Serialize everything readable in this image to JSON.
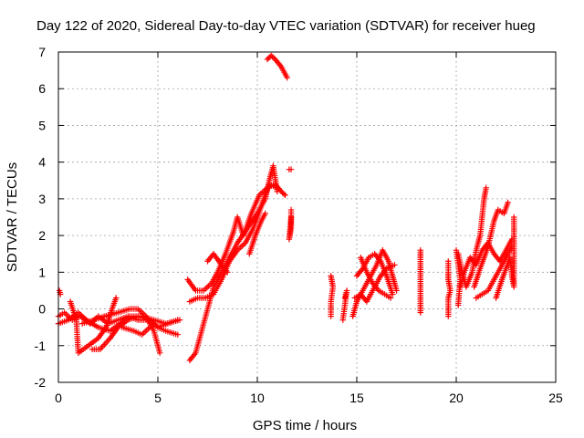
{
  "chart_data": {
    "type": "scatter",
    "title": "Day 122 of 2020, Sidereal Day-to-day VTEC variation (SDTVAR) for receiver hueg",
    "xlabel": "GPS time / hours",
    "ylabel": "SDTVAR / TECUs",
    "xlim": [
      0,
      25
    ],
    "ylim": [
      -2,
      7
    ],
    "xticks": [
      "0",
      "5",
      "10",
      "15",
      "20",
      "25"
    ],
    "yticks": [
      "-2",
      "-1",
      "0",
      "1",
      "2",
      "3",
      "4",
      "5",
      "6",
      "7"
    ],
    "grid": true,
    "marker": "+",
    "color": "#ff0000",
    "series": [
      {
        "name": "SDTVAR",
        "segments": [
          [
            [
              0,
              -0.2
            ],
            [
              0.3,
              -0.1
            ],
            [
              0.7,
              -0.3
            ],
            [
              1.1,
              -0.2
            ],
            [
              1.6,
              -0.4
            ],
            [
              2.0,
              -0.2
            ],
            [
              2.5,
              -0.4
            ],
            [
              3.0,
              -0.3
            ],
            [
              3.5,
              -0.2
            ],
            [
              4.0,
              -0.3
            ],
            [
              4.5,
              -0.3
            ],
            [
              5.0,
              -0.5
            ],
            [
              5.5,
              -0.4
            ],
            [
              6.0,
              -0.3
            ]
          ],
          [
            [
              0,
              -0.4
            ],
            [
              0.5,
              -0.3
            ],
            [
              1.0,
              -0.1
            ],
            [
              1.4,
              -0.3
            ],
            [
              2.0,
              -0.5
            ],
            [
              2.6,
              -0.6
            ],
            [
              3.1,
              -0.4
            ],
            [
              3.6,
              -0.2
            ],
            [
              4.2,
              -0.2
            ],
            [
              4.8,
              -0.3
            ],
            [
              5.4,
              -0.4
            ],
            [
              6.1,
              -0.3
            ]
          ],
          [
            [
              0.6,
              0.2
            ],
            [
              0.9,
              -0.3
            ],
            [
              1.0,
              -1.2
            ],
            [
              1.5,
              -1.0
            ],
            [
              2.0,
              -0.8
            ],
            [
              2.4,
              -0.5
            ],
            [
              2.7,
              0.0
            ],
            [
              2.9,
              0.3
            ]
          ],
          [
            [
              1.7,
              -1.1
            ],
            [
              2.1,
              -1.1
            ],
            [
              2.6,
              -0.8
            ],
            [
              3.0,
              -0.5
            ],
            [
              3.5,
              -0.3
            ],
            [
              4.0,
              -0.2
            ],
            [
              4.6,
              -0.3
            ],
            [
              5.0,
              -0.5
            ],
            [
              5.4,
              -0.6
            ],
            [
              6.0,
              -0.7
            ]
          ],
          [
            [
              1.2,
              -0.4
            ],
            [
              1.8,
              -0.3
            ],
            [
              2.3,
              -0.2
            ],
            [
              3.0,
              -0.1
            ],
            [
              3.6,
              0.0
            ],
            [
              4.0,
              0.0
            ],
            [
              4.4,
              -0.2
            ],
            [
              4.8,
              -0.6
            ],
            [
              5.1,
              -1.2
            ]
          ],
          [
            [
              3.2,
              -0.5
            ],
            [
              3.8,
              -0.6
            ],
            [
              4.2,
              -0.7
            ],
            [
              4.6,
              -0.5
            ]
          ],
          [
            [
              0.05,
              0.5
            ],
            [
              0.1,
              0.4
            ]
          ],
          [
            [
              6.6,
              -1.4
            ],
            [
              6.9,
              -1.2
            ],
            [
              7.2,
              -0.6
            ],
            [
              7.5,
              0.0
            ],
            [
              7.8,
              0.6
            ],
            [
              8.2,
              1.0
            ],
            [
              8.6,
              1.4
            ],
            [
              9.0,
              1.8
            ],
            [
              9.5,
              2.2
            ],
            [
              10.0,
              2.6
            ],
            [
              10.4,
              3.0
            ],
            [
              10.6,
              3.5
            ],
            [
              10.8,
              3.9
            ],
            [
              11.0,
              3.2
            ]
          ],
          [
            [
              6.5,
              0.8
            ],
            [
              6.9,
              0.5
            ],
            [
              7.3,
              0.5
            ],
            [
              7.7,
              0.7
            ],
            [
              8.0,
              1.0
            ],
            [
              8.4,
              1.5
            ],
            [
              8.8,
              2.1
            ],
            [
              9.0,
              2.5
            ],
            [
              9.3,
              2.0
            ],
            [
              9.7,
              2.6
            ],
            [
              10.1,
              3.1
            ],
            [
              10.5,
              3.3
            ],
            [
              10.9,
              3.4
            ],
            [
              11.2,
              3.2
            ],
            [
              11.4,
              3.1
            ]
          ],
          [
            [
              6.6,
              0.2
            ],
            [
              7.0,
              0.3
            ],
            [
              7.4,
              0.3
            ],
            [
              7.8,
              0.4
            ],
            [
              8.2,
              0.8
            ],
            [
              8.6,
              1.3
            ],
            [
              9.0,
              1.6
            ],
            [
              9.4,
              1.8
            ],
            [
              9.8,
              2.2
            ],
            [
              10.2,
              2.8
            ],
            [
              10.6,
              3.4
            ],
            [
              11.0,
              3.3
            ]
          ],
          [
            [
              7.5,
              1.3
            ],
            [
              7.8,
              1.5
            ],
            [
              8.2,
              1.2
            ],
            [
              8.5,
              1.0
            ]
          ],
          [
            [
              9.6,
              1.5
            ],
            [
              9.9,
              2.0
            ],
            [
              10.2,
              2.4
            ],
            [
              10.4,
              2.6
            ]
          ],
          [
            [
              10.5,
              6.8
            ],
            [
              10.7,
              6.9
            ],
            [
              10.9,
              6.8
            ],
            [
              11.2,
              6.6
            ],
            [
              11.5,
              6.3
            ]
          ],
          [
            [
              11.6,
              3.8
            ],
            [
              11.7,
              3.8
            ]
          ],
          [
            [
              11.7,
              2.7
            ],
            [
              11.7,
              2.2
            ],
            [
              11.6,
              1.9
            ],
            [
              11.7,
              2.5
            ]
          ],
          [
            [
              13.7,
              -0.2
            ],
            [
              13.7,
              0.2
            ],
            [
              13.8,
              0.6
            ],
            [
              13.7,
              0.9
            ]
          ],
          [
            [
              14.3,
              -0.3
            ],
            [
              14.4,
              0.1
            ],
            [
              14.5,
              0.5
            ],
            [
              14.4,
              0.3
            ]
          ],
          [
            [
              14.8,
              -0.2
            ],
            [
              15.0,
              0.2
            ],
            [
              15.3,
              0.5
            ],
            [
              15.6,
              0.8
            ],
            [
              16.0,
              1.2
            ],
            [
              16.3,
              1.6
            ],
            [
              16.6,
              1.3
            ],
            [
              16.8,
              0.9
            ],
            [
              17.0,
              0.5
            ]
          ],
          [
            [
              15.0,
              0.9
            ],
            [
              15.3,
              1.1
            ],
            [
              15.6,
              1.4
            ],
            [
              15.9,
              1.5
            ],
            [
              16.2,
              1.3
            ],
            [
              16.5,
              0.9
            ],
            [
              16.8,
              0.4
            ]
          ],
          [
            [
              14.9,
              0.3
            ],
            [
              15.2,
              0.4
            ],
            [
              15.5,
              0.2
            ],
            [
              15.9,
              0.6
            ],
            [
              16.2,
              0.9
            ],
            [
              16.5,
              1.1
            ],
            [
              16.9,
              1.2
            ]
          ],
          [
            [
              15.2,
              1.4
            ],
            [
              15.5,
              1.0
            ],
            [
              15.8,
              0.7
            ],
            [
              16.1,
              0.5
            ],
            [
              16.4,
              0.4
            ],
            [
              16.7,
              0.3
            ]
          ],
          [
            [
              18.2,
              1.6
            ],
            [
              18.2,
              1.4
            ],
            [
              18.2,
              0.8
            ],
            [
              18.2,
              0.1
            ],
            [
              18.2,
              -0.1
            ]
          ],
          [
            [
              19.6,
              1.3
            ],
            [
              19.6,
              1.0
            ],
            [
              19.6,
              0.8
            ],
            [
              19.7,
              0.5
            ],
            [
              19.6,
              0.3
            ],
            [
              19.6,
              -0.2
            ]
          ],
          [
            [
              20.1,
              1.5
            ],
            [
              20.3,
              1.0
            ],
            [
              20.5,
              0.6
            ],
            [
              20.8,
              1.0
            ],
            [
              21.0,
              1.6
            ],
            [
              21.2,
              2.0
            ],
            [
              21.3,
              2.5
            ],
            [
              21.4,
              3.0
            ],
            [
              21.5,
              3.3
            ]
          ],
          [
            [
              20.2,
              0.6
            ],
            [
              20.4,
              1.0
            ],
            [
              20.7,
              1.4
            ],
            [
              21.0,
              1.2
            ],
            [
              21.3,
              1.6
            ],
            [
              21.6,
              1.8
            ],
            [
              21.9,
              1.5
            ],
            [
              22.2,
              1.3
            ],
            [
              22.5,
              1.6
            ],
            [
              22.8,
              1.9
            ]
          ],
          [
            [
              21.0,
              0.3
            ],
            [
              21.3,
              0.4
            ],
            [
              21.6,
              0.5
            ],
            [
              21.9,
              0.8
            ],
            [
              22.2,
              1.1
            ],
            [
              22.5,
              1.4
            ],
            [
              22.8,
              1.7
            ]
          ],
          [
            [
              20.9,
              0.6
            ],
            [
              21.2,
              1.1
            ],
            [
              21.6,
              1.7
            ],
            [
              21.9,
              2.4
            ],
            [
              22.1,
              2.7
            ],
            [
              22.4,
              2.6
            ],
            [
              22.6,
              2.9
            ]
          ],
          [
            [
              22.0,
              0.3
            ],
            [
              22.3,
              0.8
            ],
            [
              22.5,
              1.1
            ],
            [
              22.7,
              1.4
            ],
            [
              22.8,
              0.9
            ],
            [
              22.9,
              0.6
            ],
            [
              22.9,
              1.8
            ],
            [
              22.9,
              2.5
            ]
          ],
          [
            [
              20.0,
              1.6
            ],
            [
              20.1,
              1.2
            ],
            [
              20.2,
              0.8
            ],
            [
              20.1,
              0.1
            ]
          ]
        ]
      }
    ]
  }
}
